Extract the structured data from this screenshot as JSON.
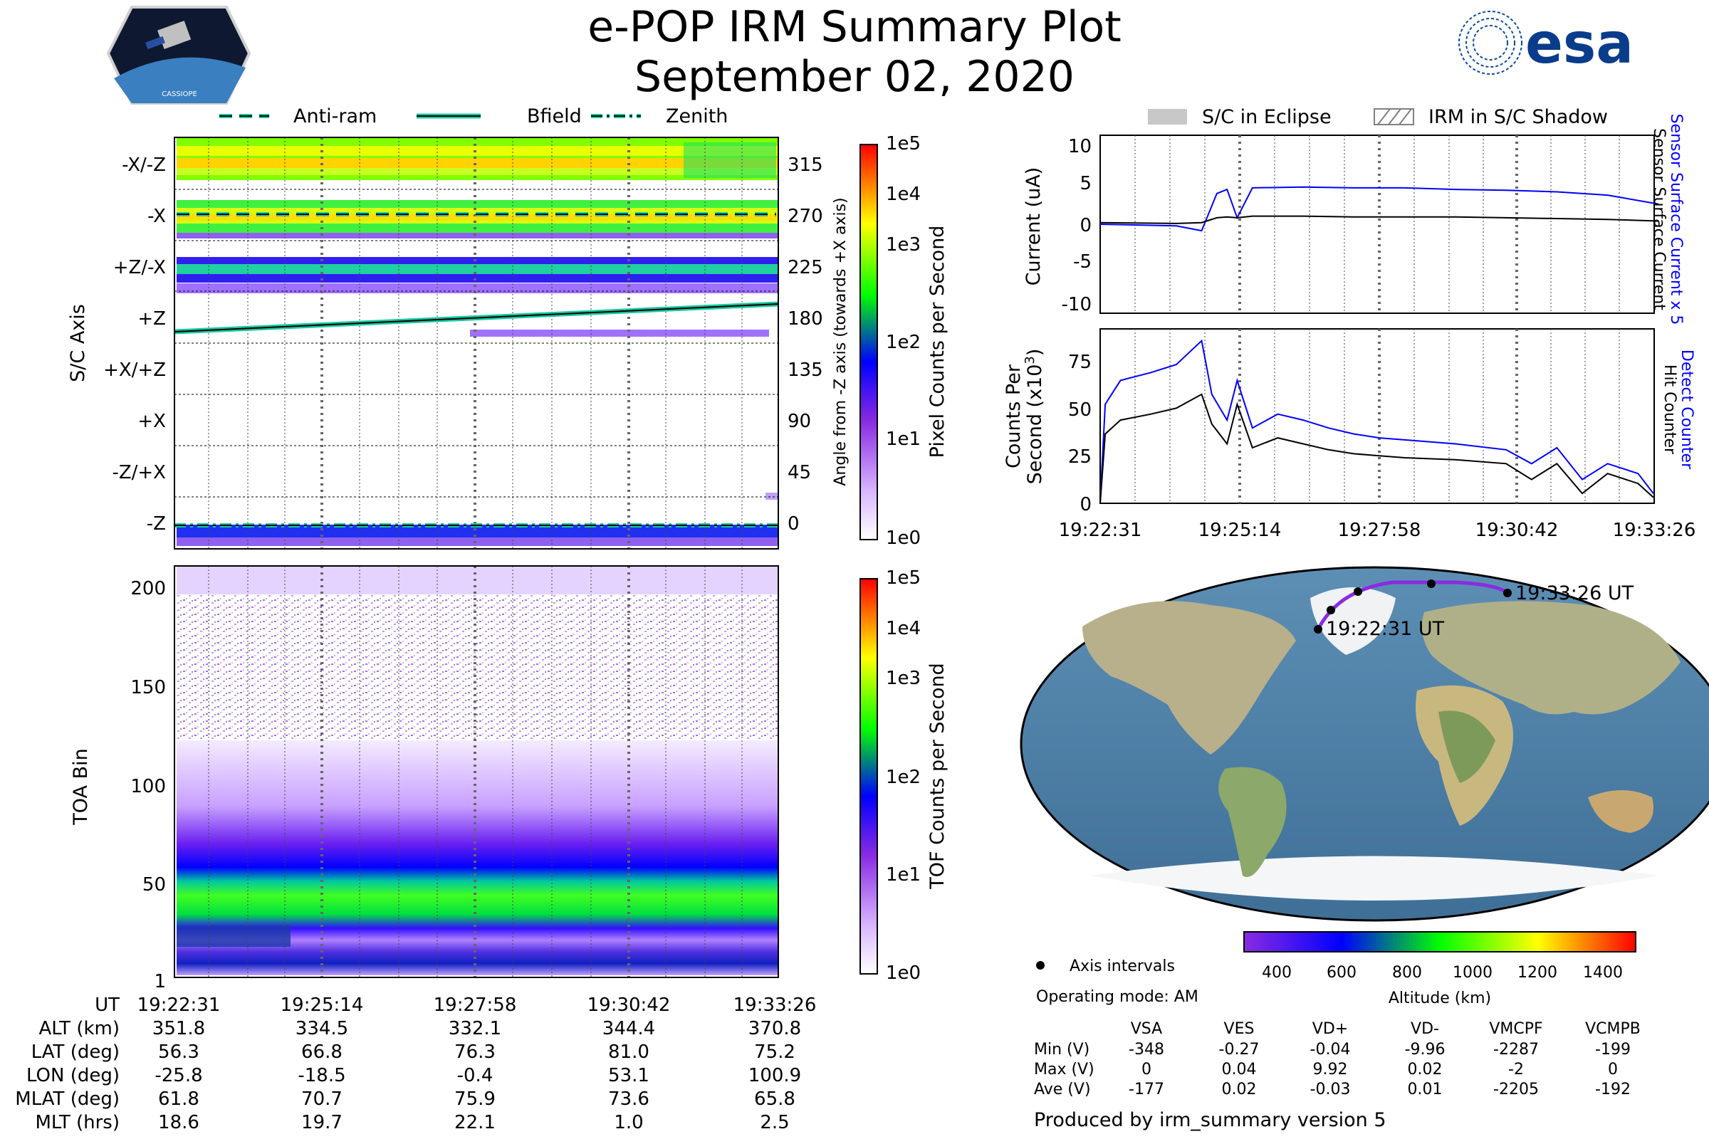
{
  "title": {
    "line1": "e-POP IRM Summary Plot",
    "line2": "September 02, 2020"
  },
  "logos": {
    "left": "CASSIOPE",
    "right": "esa"
  },
  "colors": {
    "accent_teal": "#18c8a0",
    "series_blue": "#0000ff",
    "series_black": "#000000",
    "track_purple": "#8a2be2",
    "colormap": [
      "#ffffff",
      "#d9b8ff",
      "#8a2be2",
      "#0000ff",
      "#00ff00",
      "#ffff00",
      "#ff0000"
    ]
  },
  "left_legend": [
    "Anti-ram",
    "Bfield",
    "Zenith"
  ],
  "right_legend": [
    "S/C in Eclipse",
    "IRM in S/C Shadow"
  ],
  "chart_data": [
    {
      "type": "heatmap",
      "name": "Pixel spectrogram",
      "ylabel": "S/C Axis",
      "y_ticks_left": [
        "-X/-Z",
        "-X",
        "+Z/-X",
        "+Z",
        "+X/+Z",
        "+X",
        "-Z/+X",
        "-Z"
      ],
      "y_ticks_right": [
        "315",
        "270",
        "225",
        "180",
        "135",
        "90",
        "45",
        "0"
      ],
      "ylabel_right": "Angle from -Z axis (towards +X axis)",
      "ylim": [
        -5,
        340
      ],
      "bands": [
        {
          "angle": 315,
          "level": 3.1
        },
        {
          "angle": 270,
          "level": 2.7
        },
        {
          "angle": 225,
          "level": 1.9
        },
        {
          "angle": 0,
          "level": 1.6
        }
      ],
      "bfield_line": {
        "start_deg": 170,
        "end_deg": 187
      },
      "antiram_deg": 270,
      "zenith_deg": 0,
      "colorbar": {
        "label": "Pixel Counts per Second",
        "ticks": [
          "1e5",
          "1e4",
          "1e3",
          "1e2",
          "1e1",
          "1e0"
        ]
      }
    },
    {
      "type": "heatmap",
      "name": "TOA spectrogram",
      "ylabel": "TOA Bin",
      "y_ticks": [
        "200",
        "150",
        "100",
        "50",
        "1"
      ],
      "ylim": [
        1,
        210
      ],
      "colorbar": {
        "label": "TOF Counts per Second",
        "ticks": [
          "1e5",
          "1e4",
          "1e3",
          "1e2",
          "1e1",
          "1e0"
        ]
      }
    },
    {
      "type": "line",
      "name": "Current",
      "ylabel": "Current (uA)",
      "ylabel_right_blue": "Sensor Surface Current x 5",
      "ylabel_right_black": "Sensor Surface Current",
      "y_ticks": [
        "10",
        "5",
        "0",
        "-5",
        "-10"
      ],
      "ylim": [
        -11,
        11
      ],
      "x_minutes": [
        0,
        1.5,
        2.0,
        2.3,
        2.5,
        2.7,
        3.0,
        4,
        5,
        6,
        7,
        8,
        9,
        10,
        11
      ],
      "series": [
        {
          "name": "Sensor Surface Current x 5",
          "values": [
            0,
            -0.2,
            -0.8,
            3.8,
            4.3,
            0.8,
            4.5,
            4.6,
            4.5,
            4.5,
            4.3,
            4.2,
            4.0,
            3.6,
            2.5
          ]
        },
        {
          "name": "Sensor Surface Current",
          "values": [
            0.2,
            0.1,
            0.2,
            0.8,
            0.9,
            0.8,
            1.0,
            1.0,
            0.9,
            0.9,
            0.9,
            0.8,
            0.7,
            0.6,
            0.4
          ]
        }
      ]
    },
    {
      "type": "line",
      "name": "Counts",
      "ylabel": "Counts Per Second (x10^3)",
      "ylabel_right_blue": "Detect Counter",
      "ylabel_right_black": "Hit Counter",
      "y_ticks": [
        "75",
        "50",
        "25",
        "0"
      ],
      "ylim": [
        0,
        88
      ],
      "x_ticks": [
        "19:22:31",
        "19:25:14",
        "19:27:58",
        "19:30:42",
        "19:33:26"
      ],
      "x_minutes": [
        0,
        0.1,
        0.4,
        1.0,
        1.5,
        2.0,
        2.2,
        2.5,
        2.7,
        3.0,
        3.5,
        4.0,
        4.5,
        5.0,
        5.5,
        6.0,
        7.0,
        8.0,
        8.5,
        9.0,
        9.5,
        10.0,
        10.6,
        10.9
      ],
      "series": [
        {
          "name": "Detect Counter",
          "values": [
            0,
            50,
            62,
            66,
            70,
            82,
            55,
            42,
            62,
            38,
            45,
            42,
            38,
            35,
            33,
            32,
            30,
            27,
            20,
            28,
            12,
            20,
            15,
            5
          ]
        },
        {
          "name": "Hit Counter",
          "values": [
            0,
            35,
            42,
            45,
            48,
            55,
            40,
            30,
            50,
            28,
            33,
            30,
            27,
            25,
            24,
            23,
            22,
            20,
            12,
            20,
            5,
            15,
            10,
            3
          ]
        }
      ]
    },
    {
      "type": "scatter",
      "name": "Ground track map",
      "colorbar": {
        "label": "Altitude (km)",
        "ticks": [
          "400",
          "600",
          "800",
          "1000",
          "1200",
          "1400"
        ],
        "range": [
          300,
          1500
        ]
      },
      "track_lon": [
        -25.8,
        -18.5,
        -0.4,
        53.1,
        100.9
      ],
      "track_lat": [
        56.3,
        66.8,
        76.3,
        81.0,
        75.2
      ],
      "start_label": "19:22:31 UT",
      "end_label": "19:33:26 UT"
    }
  ],
  "ephemeris": {
    "rows": [
      {
        "label": "UT",
        "values": [
          "19:22:31",
          "19:25:14",
          "19:27:58",
          "19:30:42",
          "19:33:26"
        ]
      },
      {
        "label": "ALT (km)",
        "values": [
          "351.8",
          "334.5",
          "332.1",
          "344.4",
          "370.8"
        ]
      },
      {
        "label": "LAT (deg)",
        "values": [
          "56.3",
          "66.8",
          "76.3",
          "81.0",
          "75.2"
        ]
      },
      {
        "label": "LON (deg)",
        "values": [
          "-25.8",
          "-18.5",
          "-0.4",
          "53.1",
          "100.9"
        ]
      },
      {
        "label": "MLAT (deg)",
        "values": [
          "61.8",
          "70.7",
          "75.9",
          "73.6",
          "65.8"
        ]
      },
      {
        "label": "MLT (hrs)",
        "values": [
          "18.6",
          "19.7",
          "22.1",
          "1.0",
          "2.5"
        ]
      }
    ]
  },
  "voltages": {
    "legend_text": "Axis intervals",
    "mode_text": "Operating mode: AM",
    "columns": [
      "VSA",
      "VES",
      "VD+",
      "VD-",
      "VMCPF",
      "VCMPB"
    ],
    "rows": [
      {
        "label": "Min (V)",
        "values": [
          "-348",
          "-0.27",
          "-0.04",
          "-9.96",
          "-2287",
          "-199"
        ]
      },
      {
        "label": "Max (V)",
        "values": [
          "0",
          "0.04",
          "9.92",
          "0.02",
          "-2",
          "0"
        ]
      },
      {
        "label": "Ave (V)",
        "values": [
          "-177",
          "0.02",
          "-0.03",
          "0.01",
          "-2205",
          "-192"
        ]
      }
    ]
  },
  "footer": "Produced by irm_summary version 5"
}
